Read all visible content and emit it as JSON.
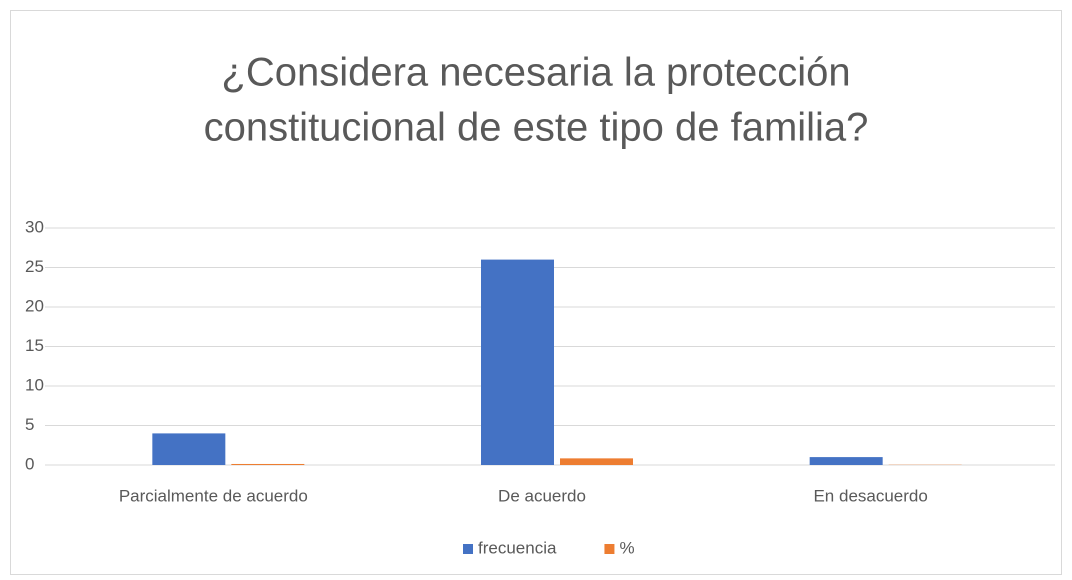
{
  "chart_data": {
    "type": "bar",
    "title": [
      "¿Considera necesaria la protección",
      "constitucional de este tipo de familia?"
    ],
    "categories": [
      "Parcialmente de acuerdo",
      "De acuerdo",
      "En desacuerdo"
    ],
    "series": [
      {
        "name": "frecuencia",
        "color": "#4472c4",
        "values": [
          4,
          26,
          1
        ]
      },
      {
        "name": "%",
        "color": "#ed7d31",
        "values": [
          0.13,
          0.84,
          0.03
        ]
      }
    ],
    "ylim": [
      0,
      30
    ],
    "yticks": [
      0,
      5,
      10,
      15,
      20,
      25,
      30
    ],
    "grid": true,
    "legend": "bottom"
  }
}
